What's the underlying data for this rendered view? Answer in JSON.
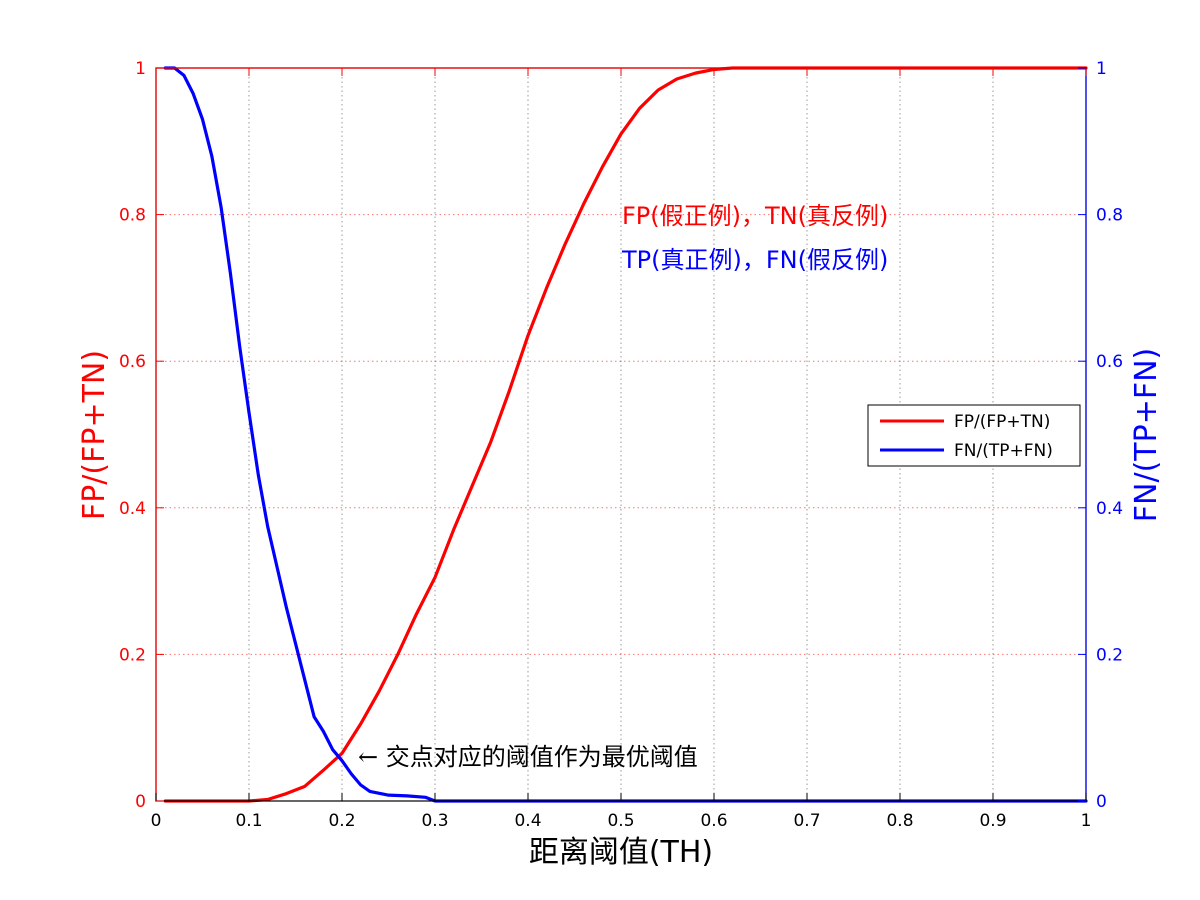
{
  "colors": {
    "red": "#ff0000",
    "blue": "#0000ff",
    "grid": "#9a9a9a",
    "axis": "#000000"
  },
  "chart_data": {
    "type": "line",
    "xlabel": "距离阈值(TH)",
    "ylabel_left": "FP/(FP+TN)",
    "ylabel_right": "FN/(TP+FN)",
    "xlim": [
      0,
      1
    ],
    "ylim_left": [
      0,
      1
    ],
    "ylim_right": [
      0,
      1
    ],
    "grid": true,
    "xticks": [
      "0",
      "0.1",
      "0.2",
      "0.3",
      "0.4",
      "0.5",
      "0.6",
      "0.7",
      "0.8",
      "0.9",
      "1"
    ],
    "yticks_left": [
      "0",
      "0.2",
      "0.4",
      "0.6",
      "0.8",
      "1"
    ],
    "yticks_right": [
      "0",
      "0.2",
      "0.4",
      "0.6",
      "0.8",
      "1"
    ],
    "legend": {
      "position": "right-middle",
      "entries": [
        "FP/(FP+TN)",
        "FN/(TP+FN)"
      ]
    },
    "annotations": {
      "red_text": "FP(假正例)，TN(真反例)",
      "blue_text": "TP(真正例)，FN(假反例)",
      "arrow_text": "← 交点对应的阈值作为最优阈值"
    },
    "series": [
      {
        "name": "FP/(FP+TN)",
        "axis": "left",
        "color": "#ff0000",
        "x": [
          0.01,
          0.05,
          0.1,
          0.12,
          0.14,
          0.16,
          0.18,
          0.2,
          0.22,
          0.24,
          0.26,
          0.28,
          0.3,
          0.32,
          0.34,
          0.36,
          0.38,
          0.4,
          0.42,
          0.44,
          0.46,
          0.48,
          0.5,
          0.52,
          0.54,
          0.56,
          0.58,
          0.6,
          0.62,
          0.65,
          0.7,
          0.8,
          0.9,
          1.0
        ],
        "y": [
          0.0,
          0.0,
          0.0,
          0.002,
          0.01,
          0.02,
          0.042,
          0.065,
          0.105,
          0.15,
          0.2,
          0.255,
          0.305,
          0.37,
          0.43,
          0.49,
          0.56,
          0.635,
          0.7,
          0.76,
          0.815,
          0.865,
          0.91,
          0.945,
          0.97,
          0.985,
          0.993,
          0.998,
          1.0,
          1.0,
          1.0,
          1.0,
          1.0,
          1.0
        ]
      },
      {
        "name": "FN/(TP+FN)",
        "axis": "right",
        "color": "#0000ff",
        "x": [
          0.01,
          0.02,
          0.03,
          0.04,
          0.05,
          0.06,
          0.07,
          0.08,
          0.09,
          0.1,
          0.11,
          0.12,
          0.13,
          0.14,
          0.15,
          0.16,
          0.17,
          0.18,
          0.19,
          0.2,
          0.21,
          0.22,
          0.23,
          0.25,
          0.27,
          0.29,
          0.3,
          0.35,
          0.4,
          0.6,
          0.8,
          1.0
        ],
        "y": [
          1.0,
          1.0,
          0.99,
          0.965,
          0.93,
          0.88,
          0.81,
          0.72,
          0.62,
          0.53,
          0.445,
          0.375,
          0.32,
          0.265,
          0.215,
          0.165,
          0.115,
          0.095,
          0.07,
          0.055,
          0.037,
          0.022,
          0.013,
          0.008,
          0.007,
          0.005,
          0.0,
          0.0,
          0.0,
          0.0,
          0.0,
          0.0
        ]
      }
    ]
  }
}
